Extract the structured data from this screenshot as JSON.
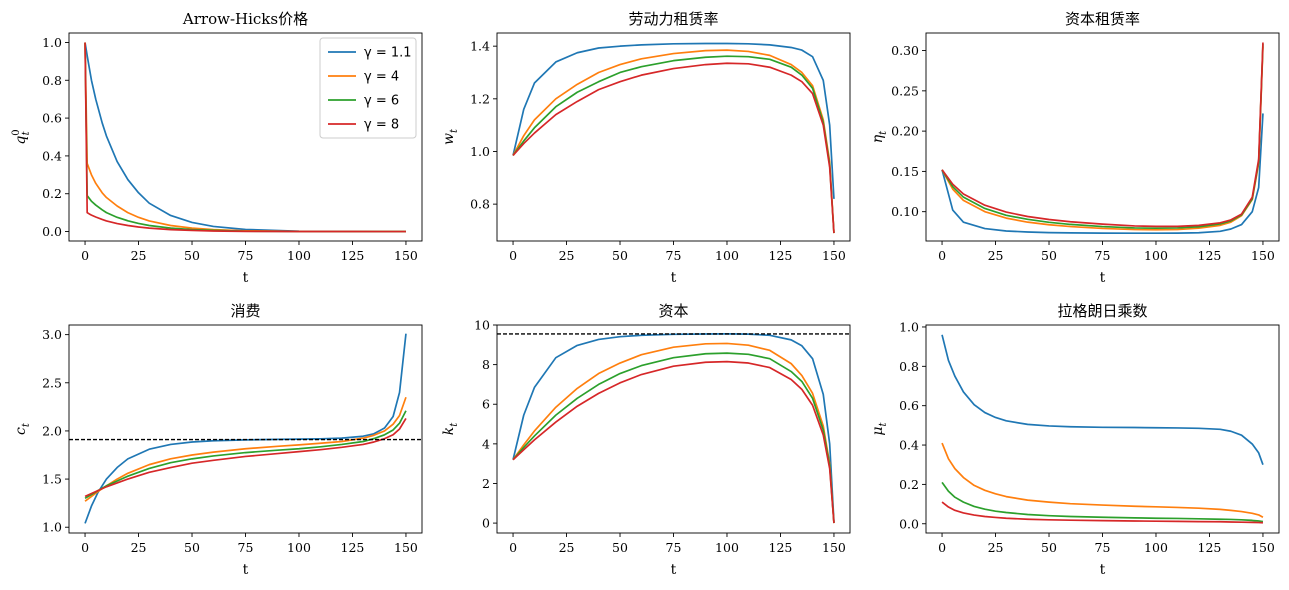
{
  "chart_data": [
    {
      "type": "line",
      "title": "Arrow-Hicks价格",
      "xlabel": "t",
      "ylabel": "q_t^0",
      "xlim": [
        -7.5,
        157.5
      ],
      "ylim": [
        -0.05,
        1.05
      ],
      "xticks": [
        0,
        25,
        50,
        75,
        100,
        125,
        150
      ],
      "yticks": [
        0.0,
        0.2,
        0.4,
        0.6,
        0.8,
        1.0
      ],
      "ytick_decimals": 1,
      "legend": "top-right",
      "x": [
        0,
        1,
        2,
        3,
        5,
        8,
        10,
        15,
        20,
        25,
        30,
        40,
        50,
        60,
        75,
        100,
        125,
        150
      ],
      "series": [
        {
          "name": "γ = 1.1",
          "color": "#1f77b4",
          "values": [
            1.0,
            0.93,
            0.865,
            0.8,
            0.7,
            0.575,
            0.505,
            0.37,
            0.275,
            0.205,
            0.15,
            0.085,
            0.048,
            0.027,
            0.011,
            0.002,
            0.0005,
            0.0001
          ]
        },
        {
          "name": "γ = 4",
          "color": "#ff7f0e",
          "values": [
            1.0,
            0.36,
            0.33,
            0.3,
            0.255,
            0.205,
            0.18,
            0.135,
            0.1,
            0.075,
            0.056,
            0.032,
            0.018,
            0.01,
            0.004,
            0.001,
            0.0002,
            0.0001
          ]
        },
        {
          "name": "γ = 6",
          "color": "#2ca02c",
          "values": [
            1.0,
            0.19,
            0.175,
            0.16,
            0.14,
            0.115,
            0.1,
            0.075,
            0.057,
            0.043,
            0.032,
            0.018,
            0.01,
            0.006,
            0.002,
            0.0005,
            0.0001,
            0.0
          ]
        },
        {
          "name": "γ = 8",
          "color": "#d62728",
          "values": [
            1.0,
            0.1,
            0.093,
            0.087,
            0.077,
            0.064,
            0.056,
            0.042,
            0.032,
            0.024,
            0.018,
            0.01,
            0.006,
            0.003,
            0.001,
            0.0003,
            0.0001,
            0.0
          ]
        }
      ]
    },
    {
      "type": "line",
      "title": "劳动力租赁率",
      "xlabel": "t",
      "ylabel": "w_t",
      "xlim": [
        -7.5,
        157.5
      ],
      "ylim": [
        0.66,
        1.45
      ],
      "xticks": [
        0,
        25,
        50,
        75,
        100,
        125,
        150
      ],
      "yticks": [
        0.8,
        1.0,
        1.2,
        1.4
      ],
      "ytick_decimals": 1,
      "x": [
        0,
        5,
        10,
        20,
        30,
        40,
        50,
        60,
        75,
        90,
        100,
        110,
        120,
        130,
        135,
        140,
        145,
        148,
        150
      ],
      "series": [
        {
          "color": "#1f77b4",
          "values": [
            0.985,
            1.16,
            1.26,
            1.34,
            1.375,
            1.393,
            1.4,
            1.405,
            1.409,
            1.41,
            1.41,
            1.409,
            1.405,
            1.395,
            1.385,
            1.36,
            1.27,
            1.1,
            0.82
          ]
        },
        {
          "color": "#ff7f0e",
          "values": [
            0.985,
            1.06,
            1.12,
            1.2,
            1.255,
            1.3,
            1.33,
            1.352,
            1.372,
            1.383,
            1.385,
            1.38,
            1.365,
            1.33,
            1.3,
            1.25,
            1.12,
            0.96,
            0.69
          ]
        },
        {
          "color": "#2ca02c",
          "values": [
            0.985,
            1.04,
            1.09,
            1.17,
            1.225,
            1.265,
            1.3,
            1.322,
            1.345,
            1.358,
            1.362,
            1.36,
            1.35,
            1.32,
            1.29,
            1.24,
            1.11,
            0.95,
            0.69
          ]
        },
        {
          "color": "#d62728",
          "values": [
            0.985,
            1.03,
            1.07,
            1.14,
            1.19,
            1.235,
            1.265,
            1.29,
            1.315,
            1.33,
            1.335,
            1.333,
            1.32,
            1.29,
            1.265,
            1.22,
            1.1,
            0.94,
            0.69
          ]
        }
      ]
    },
    {
      "type": "line",
      "title": "资本租赁率",
      "xlabel": "t",
      "ylabel": "η_t",
      "xlim": [
        -7.5,
        157.5
      ],
      "ylim": [
        0.0636,
        0.3218
      ],
      "xticks": [
        0,
        25,
        50,
        75,
        100,
        125,
        150
      ],
      "yticks": [
        0.1,
        0.15,
        0.2,
        0.25,
        0.3
      ],
      "ytick_decimals": 2,
      "x": [
        0,
        5,
        10,
        20,
        30,
        40,
        50,
        60,
        75,
        90,
        100,
        110,
        120,
        130,
        135,
        140,
        145,
        148,
        150
      ],
      "series": [
        {
          "color": "#1f77b4",
          "values": [
            0.152,
            0.102,
            0.087,
            0.079,
            0.076,
            0.0748,
            0.074,
            0.0737,
            0.0734,
            0.0733,
            0.0733,
            0.0734,
            0.0738,
            0.0756,
            0.0785,
            0.084,
            0.1,
            0.13,
            0.222
          ]
        },
        {
          "color": "#ff7f0e",
          "values": [
            0.152,
            0.128,
            0.114,
            0.1,
            0.092,
            0.087,
            0.0838,
            0.0815,
            0.0792,
            0.0778,
            0.0775,
            0.0778,
            0.0795,
            0.083,
            0.087,
            0.095,
            0.115,
            0.16,
            0.305
          ]
        },
        {
          "color": "#2ca02c",
          "values": [
            0.152,
            0.131,
            0.118,
            0.104,
            0.0955,
            0.0905,
            0.0868,
            0.0842,
            0.0815,
            0.0798,
            0.0795,
            0.0798,
            0.0813,
            0.0848,
            0.0885,
            0.096,
            0.116,
            0.162,
            0.308
          ]
        },
        {
          "color": "#d62728",
          "values": [
            0.152,
            0.134,
            0.122,
            0.108,
            0.0995,
            0.094,
            0.0903,
            0.0875,
            0.0845,
            0.0823,
            0.0818,
            0.0818,
            0.083,
            0.0862,
            0.0898,
            0.097,
            0.118,
            0.165,
            0.31
          ]
        }
      ]
    },
    {
      "type": "line",
      "title": "消费",
      "xlabel": "t",
      "ylabel": "c_t",
      "xlim": [
        -7.5,
        157.5
      ],
      "ylim": [
        0.94,
        3.1
      ],
      "xticks": [
        0,
        25,
        50,
        75,
        100,
        125,
        150
      ],
      "yticks": [
        1.0,
        1.5,
        2.0,
        2.5,
        3.0
      ],
      "ytick_decimals": 1,
      "hline": 1.91,
      "x": [
        0,
        3,
        6,
        10,
        15,
        20,
        30,
        40,
        50,
        60,
        75,
        90,
        100,
        110,
        120,
        130,
        135,
        140,
        144,
        147,
        150
      ],
      "series": [
        {
          "color": "#1f77b4",
          "values": [
            1.04,
            1.22,
            1.36,
            1.5,
            1.62,
            1.71,
            1.81,
            1.86,
            1.885,
            1.898,
            1.907,
            1.912,
            1.915,
            1.918,
            1.925,
            1.945,
            1.97,
            2.03,
            2.15,
            2.4,
            3.01
          ]
        },
        {
          "color": "#ff7f0e",
          "values": [
            1.27,
            1.32,
            1.37,
            1.43,
            1.5,
            1.56,
            1.65,
            1.71,
            1.75,
            1.78,
            1.815,
            1.84,
            1.855,
            1.872,
            1.89,
            1.925,
            1.955,
            2.0,
            2.07,
            2.16,
            2.35
          ]
        },
        {
          "color": "#2ca02c",
          "values": [
            1.3,
            1.34,
            1.38,
            1.43,
            1.48,
            1.53,
            1.61,
            1.67,
            1.71,
            1.74,
            1.775,
            1.8,
            1.815,
            1.835,
            1.86,
            1.89,
            1.92,
            1.96,
            2.01,
            2.08,
            2.21
          ]
        },
        {
          "color": "#d62728",
          "values": [
            1.32,
            1.35,
            1.38,
            1.42,
            1.46,
            1.5,
            1.57,
            1.62,
            1.665,
            1.695,
            1.735,
            1.765,
            1.785,
            1.805,
            1.83,
            1.86,
            1.885,
            1.92,
            1.96,
            2.02,
            2.13
          ]
        }
      ]
    },
    {
      "type": "line",
      "title": "资本",
      "xlabel": "t",
      "ylabel": "k_t",
      "xlim": [
        -7.5,
        157.5
      ],
      "ylim": [
        -0.5,
        10.0
      ],
      "xticks": [
        0,
        25,
        50,
        75,
        100,
        125,
        150
      ],
      "yticks": [
        0,
        2,
        4,
        6,
        8,
        10
      ],
      "ytick_decimals": 0,
      "hline": 9.55,
      "x": [
        0,
        5,
        10,
        20,
        30,
        40,
        50,
        60,
        75,
        90,
        100,
        110,
        120,
        130,
        135,
        140,
        145,
        148,
        150
      ],
      "series": [
        {
          "color": "#1f77b4",
          "values": [
            3.2,
            5.45,
            6.85,
            8.35,
            8.97,
            9.27,
            9.41,
            9.48,
            9.53,
            9.545,
            9.55,
            9.54,
            9.48,
            9.25,
            8.95,
            8.3,
            6.5,
            4.0,
            0.05
          ]
        },
        {
          "color": "#ff7f0e",
          "values": [
            3.2,
            3.95,
            4.65,
            5.85,
            6.8,
            7.55,
            8.08,
            8.5,
            8.88,
            9.05,
            9.07,
            8.98,
            8.72,
            8.05,
            7.45,
            6.55,
            4.9,
            3.0,
            0.0
          ]
        },
        {
          "color": "#2ca02c",
          "values": [
            3.2,
            3.82,
            4.4,
            5.45,
            6.3,
            7.0,
            7.55,
            7.95,
            8.35,
            8.55,
            8.58,
            8.52,
            8.3,
            7.65,
            7.15,
            6.3,
            4.7,
            2.9,
            0.0
          ]
        },
        {
          "color": "#d62728",
          "values": [
            3.2,
            3.7,
            4.2,
            5.1,
            5.9,
            6.55,
            7.08,
            7.5,
            7.92,
            8.12,
            8.15,
            8.08,
            7.85,
            7.25,
            6.75,
            5.95,
            4.45,
            2.75,
            0.0
          ]
        }
      ]
    },
    {
      "type": "line",
      "title": "拉格朗日乘数",
      "xlabel": "t",
      "ylabel": "μ_t",
      "xlim": [
        -7.5,
        157.5
      ],
      "ylim": [
        -0.047,
        1.01
      ],
      "xticks": [
        0,
        25,
        50,
        75,
        100,
        125,
        150
      ],
      "yticks": [
        0.0,
        0.2,
        0.4,
        0.6,
        0.8,
        1.0
      ],
      "ytick_decimals": 1,
      "x": [
        0,
        3,
        6,
        10,
        15,
        20,
        25,
        30,
        40,
        50,
        60,
        75,
        90,
        100,
        110,
        120,
        130,
        135,
        140,
        145,
        148,
        150
      ],
      "series": [
        {
          "color": "#1f77b4",
          "values": [
            0.96,
            0.83,
            0.75,
            0.67,
            0.605,
            0.565,
            0.54,
            0.523,
            0.505,
            0.497,
            0.493,
            0.49,
            0.489,
            0.488,
            0.487,
            0.485,
            0.48,
            0.47,
            0.45,
            0.405,
            0.36,
            0.3
          ]
        },
        {
          "color": "#ff7f0e",
          "values": [
            0.41,
            0.33,
            0.28,
            0.235,
            0.195,
            0.17,
            0.152,
            0.138,
            0.12,
            0.11,
            0.102,
            0.095,
            0.089,
            0.086,
            0.083,
            0.079,
            0.073,
            0.068,
            0.062,
            0.053,
            0.045,
            0.033
          ]
        },
        {
          "color": "#2ca02c",
          "values": [
            0.21,
            0.165,
            0.135,
            0.11,
            0.088,
            0.074,
            0.064,
            0.057,
            0.047,
            0.041,
            0.037,
            0.033,
            0.03,
            0.028,
            0.027,
            0.025,
            0.023,
            0.022,
            0.02,
            0.017,
            0.014,
            0.011
          ]
        },
        {
          "color": "#d62728",
          "values": [
            0.11,
            0.085,
            0.068,
            0.055,
            0.044,
            0.037,
            0.032,
            0.028,
            0.023,
            0.02,
            0.018,
            0.016,
            0.014,
            0.013,
            0.012,
            0.011,
            0.01,
            0.009,
            0.008,
            0.007,
            0.006,
            0.005
          ]
        }
      ]
    }
  ]
}
